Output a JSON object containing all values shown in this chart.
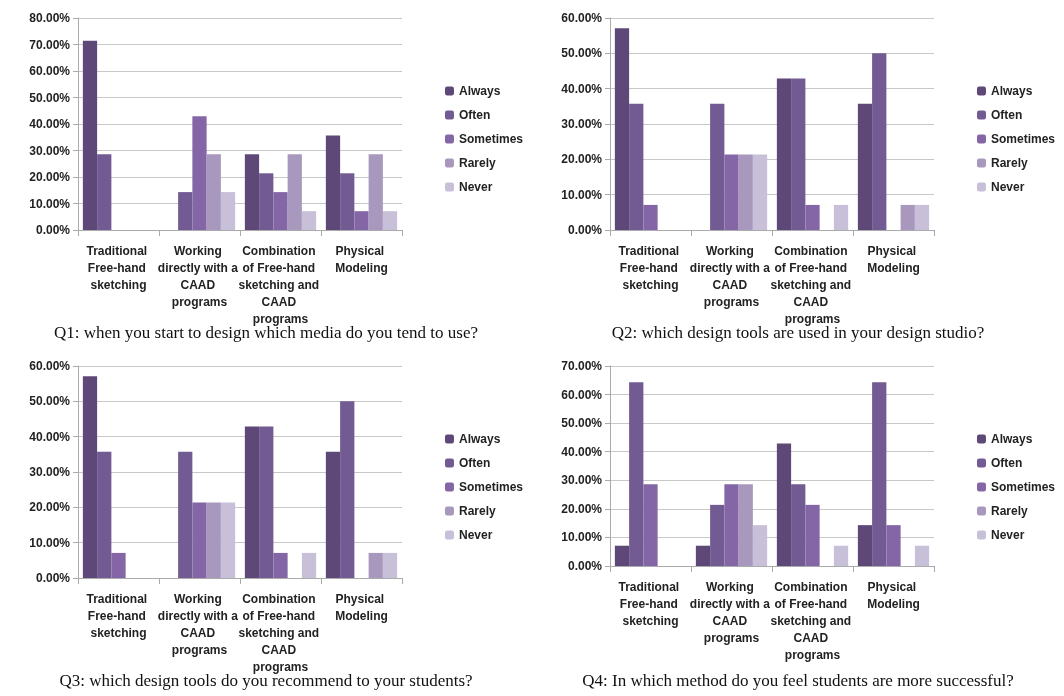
{
  "chart_data": [
    {
      "type": "bar",
      "title": "Q1: when you start to design which media do you tend to use?",
      "categories": [
        "Traditional Free-hand sketching",
        "Working directly with a CAAD programs",
        "Combination of Free-hand sketching and CAAD programs",
        "Physical Modeling"
      ],
      "series": [
        {
          "name": "Always",
          "color": "#5e4878",
          "values": [
            71.4,
            0,
            28.6,
            35.7
          ]
        },
        {
          "name": "Often",
          "color": "#725a92",
          "values": [
            28.6,
            14.3,
            21.4,
            21.4
          ]
        },
        {
          "name": "Sometimes",
          "color": "#8466a6",
          "values": [
            0,
            42.9,
            14.3,
            7.1
          ]
        },
        {
          "name": "Rarely",
          "color": "#a898bd",
          "values": [
            0,
            28.6,
            28.6,
            28.6
          ]
        },
        {
          "name": "Never",
          "color": "#c8bfd8",
          "values": [
            0,
            14.3,
            7.1,
            7.1
          ]
        }
      ],
      "ylim": [
        0,
        80
      ],
      "yticks": [
        {
          "value": 0,
          "label": "0.00%"
        },
        {
          "value": 10,
          "label": "10.00%"
        },
        {
          "value": 20,
          "label": "20.00%"
        },
        {
          "value": 30,
          "label": "30.00%"
        },
        {
          "value": 40,
          "label": "40.00%"
        },
        {
          "value": 50,
          "label": "50.00%"
        },
        {
          "value": 60,
          "label": "60.00%"
        },
        {
          "value": 70,
          "label": "70.00%"
        },
        {
          "value": 80,
          "label": "80.00%"
        }
      ],
      "grid": "y",
      "legend": "right"
    },
    {
      "type": "bar",
      "title": "Q2: which design tools are used in your design studio?",
      "categories": [
        "Traditional Free-hand sketching",
        "Working directly with a CAAD programs",
        "Combination of Free-hand sketching and CAAD programs",
        "Physical Modeling"
      ],
      "series": [
        {
          "name": "Always",
          "color": "#5e4878",
          "values": [
            57.1,
            0,
            42.9,
            35.7
          ]
        },
        {
          "name": "Often",
          "color": "#725a92",
          "values": [
            35.7,
            35.7,
            42.9,
            50
          ]
        },
        {
          "name": "Sometimes",
          "color": "#8466a6",
          "values": [
            7.1,
            21.4,
            7.1,
            0
          ]
        },
        {
          "name": "Rarely",
          "color": "#a898bd",
          "values": [
            0,
            21.4,
            0,
            7.1
          ]
        },
        {
          "name": "Never",
          "color": "#c8bfd8",
          "values": [
            0,
            21.4,
            7.1,
            7.1
          ]
        }
      ],
      "ylim": [
        0,
        60
      ],
      "yticks": [
        {
          "value": 0,
          "label": "0.00%"
        },
        {
          "value": 10,
          "label": "10.00%"
        },
        {
          "value": 20,
          "label": "20.00%"
        },
        {
          "value": 30,
          "label": "30.00%"
        },
        {
          "value": 40,
          "label": "40.00%"
        },
        {
          "value": 50,
          "label": "50.00%"
        },
        {
          "value": 60,
          "label": "60.00%"
        }
      ],
      "grid": "y",
      "legend": "right"
    },
    {
      "type": "bar",
      "title": "Q3: which design tools do you recommend to your students?",
      "categories": [
        "Traditional Free-hand sketching",
        "Working directly with a CAAD programs",
        "Combination of Free-hand sketching and CAAD programs",
        "Physical Modeling"
      ],
      "series": [
        {
          "name": "Always",
          "color": "#5e4878",
          "values": [
            57.1,
            0,
            42.9,
            35.7
          ]
        },
        {
          "name": "Often",
          "color": "#725a92",
          "values": [
            35.7,
            35.7,
            42.9,
            50
          ]
        },
        {
          "name": "Sometimes",
          "color": "#8466a6",
          "values": [
            7.1,
            21.4,
            7.1,
            0
          ]
        },
        {
          "name": "Rarely",
          "color": "#a898bd",
          "values": [
            0,
            21.4,
            0,
            7.1
          ]
        },
        {
          "name": "Never",
          "color": "#c8bfd8",
          "values": [
            0,
            21.4,
            7.1,
            7.1
          ]
        }
      ],
      "ylim": [
        0,
        60
      ],
      "yticks": [
        {
          "value": 0,
          "label": "0.00%"
        },
        {
          "value": 10,
          "label": "10.00%"
        },
        {
          "value": 20,
          "label": "20.00%"
        },
        {
          "value": 30,
          "label": "30.00%"
        },
        {
          "value": 40,
          "label": "40.00%"
        },
        {
          "value": 50,
          "label": "50.00%"
        },
        {
          "value": 60,
          "label": "60.00%"
        }
      ],
      "grid": "y",
      "legend": "right"
    },
    {
      "type": "bar",
      "title": "Q4: In which method do you feel students are more successful?",
      "categories": [
        "Traditional Free-hand sketching",
        "Working directly with a CAAD programs",
        "Combination of Free-hand sketching and CAAD programs",
        "Physical Modeling"
      ],
      "series": [
        {
          "name": "Always",
          "color": "#5e4878",
          "values": [
            7.1,
            7.1,
            42.9,
            14.3
          ]
        },
        {
          "name": "Often",
          "color": "#725a92",
          "values": [
            64.3,
            21.4,
            28.6,
            64.3
          ]
        },
        {
          "name": "Sometimes",
          "color": "#8466a6",
          "values": [
            28.6,
            28.6,
            21.4,
            14.3
          ]
        },
        {
          "name": "Rarely",
          "color": "#a898bd",
          "values": [
            0,
            28.6,
            0,
            0
          ]
        },
        {
          "name": "Never",
          "color": "#c8bfd8",
          "values": [
            0,
            14.3,
            7.1,
            7.1
          ]
        }
      ],
      "ylim": [
        0,
        70
      ],
      "yticks": [
        {
          "value": 0,
          "label": "0.00%"
        },
        {
          "value": 10,
          "label": "10.00%"
        },
        {
          "value": 20,
          "label": "20.00%"
        },
        {
          "value": 30,
          "label": "30.00%"
        },
        {
          "value": 40,
          "label": "40.00%"
        },
        {
          "value": 50,
          "label": "50.00%"
        },
        {
          "value": 60,
          "label": "60.00%"
        },
        {
          "value": 70,
          "label": "70.00%"
        }
      ],
      "grid": "y",
      "legend": "right"
    }
  ]
}
